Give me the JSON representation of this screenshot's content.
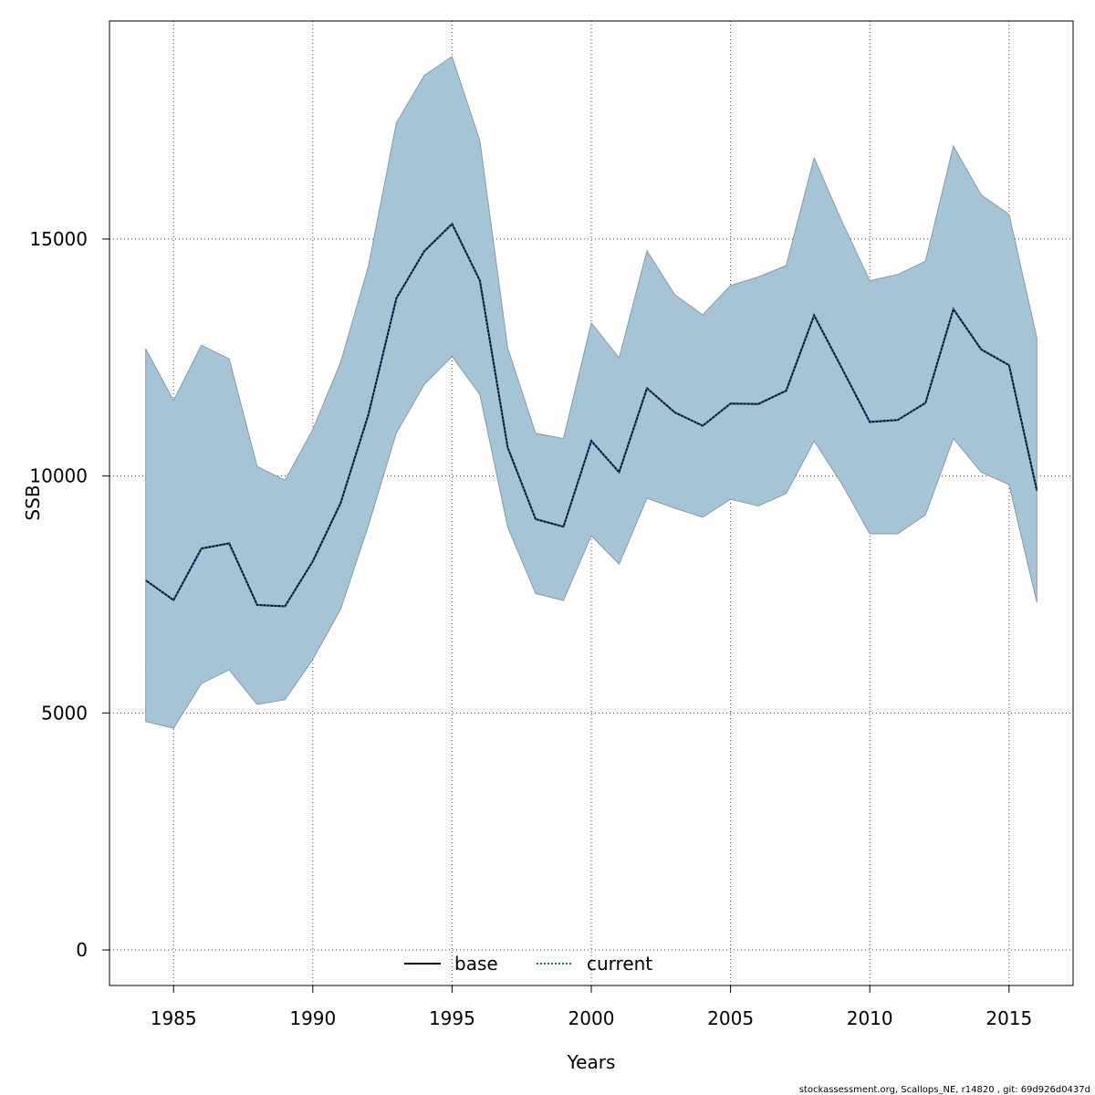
{
  "chart_data": {
    "type": "area",
    "xlabel": "Years",
    "ylabel": "SSB",
    "xlim": [
      1982.7,
      2017.3
    ],
    "ylim": [
      -750,
      19600
    ],
    "xticks": [
      1985,
      1990,
      1995,
      2000,
      2005,
      2010,
      2015
    ],
    "yticks": [
      0,
      5000,
      10000,
      15000
    ],
    "grid": true,
    "legend_position": "bottom",
    "x": [
      1984,
      1985,
      1986,
      1987,
      1988,
      1989,
      1990,
      1991,
      1992,
      1993,
      1994,
      1995,
      1996,
      1997,
      1998,
      1999,
      2000,
      2001,
      2002,
      2003,
      2004,
      2005,
      2006,
      2007,
      2008,
      2009,
      2010,
      2011,
      2012,
      2013,
      2014,
      2015,
      2016
    ],
    "series": [
      {
        "name": "base",
        "line_style": "solid",
        "color": "#000000",
        "values": [
          7800,
          7380,
          8470,
          8580,
          7280,
          7250,
          8200,
          9430,
          11300,
          13750,
          14740,
          15320,
          14120,
          10600,
          9090,
          8930,
          10740,
          10080,
          11850,
          11340,
          11060,
          11530,
          11520,
          11800,
          13390,
          12270,
          11140,
          11180,
          11540,
          13520,
          12670,
          12340,
          9690
        ]
      },
      {
        "name": "current",
        "line_style": "dotted",
        "color": "#1f5fa0",
        "values": [
          7800,
          7380,
          8470,
          8580,
          7280,
          7250,
          8200,
          9430,
          11300,
          13750,
          14740,
          15320,
          14120,
          10600,
          9090,
          8930,
          10740,
          10080,
          11850,
          11340,
          11060,
          11530,
          11520,
          11800,
          13390,
          12270,
          11140,
          11180,
          11540,
          13520,
          12670,
          12340,
          9690
        ]
      }
    ],
    "band": {
      "fill_color": "#a5c4d6",
      "stroke_color": "#8a9aa6",
      "upper": [
        12680,
        11590,
        12760,
        12470,
        10200,
        9910,
        10980,
        12400,
        14430,
        17450,
        18450,
        18850,
        17070,
        12700,
        10900,
        10790,
        13230,
        12490,
        14750,
        13820,
        13400,
        14020,
        14200,
        14440,
        16710,
        15370,
        14120,
        14250,
        14530,
        16960,
        15930,
        15520,
        12910
      ],
      "lower": [
        4820,
        4680,
        5620,
        5910,
        5180,
        5280,
        6130,
        7190,
        8960,
        10910,
        11930,
        12520,
        11720,
        8920,
        7520,
        7370,
        8740,
        8140,
        9530,
        9320,
        9130,
        9510,
        9370,
        9630,
        10740,
        9830,
        8780,
        8780,
        9180,
        10790,
        10080,
        9820,
        7330
      ]
    }
  },
  "footer": {
    "text": "stockassessment.org, Scallops_NE, r14820 , git: 69d926d0437d"
  }
}
